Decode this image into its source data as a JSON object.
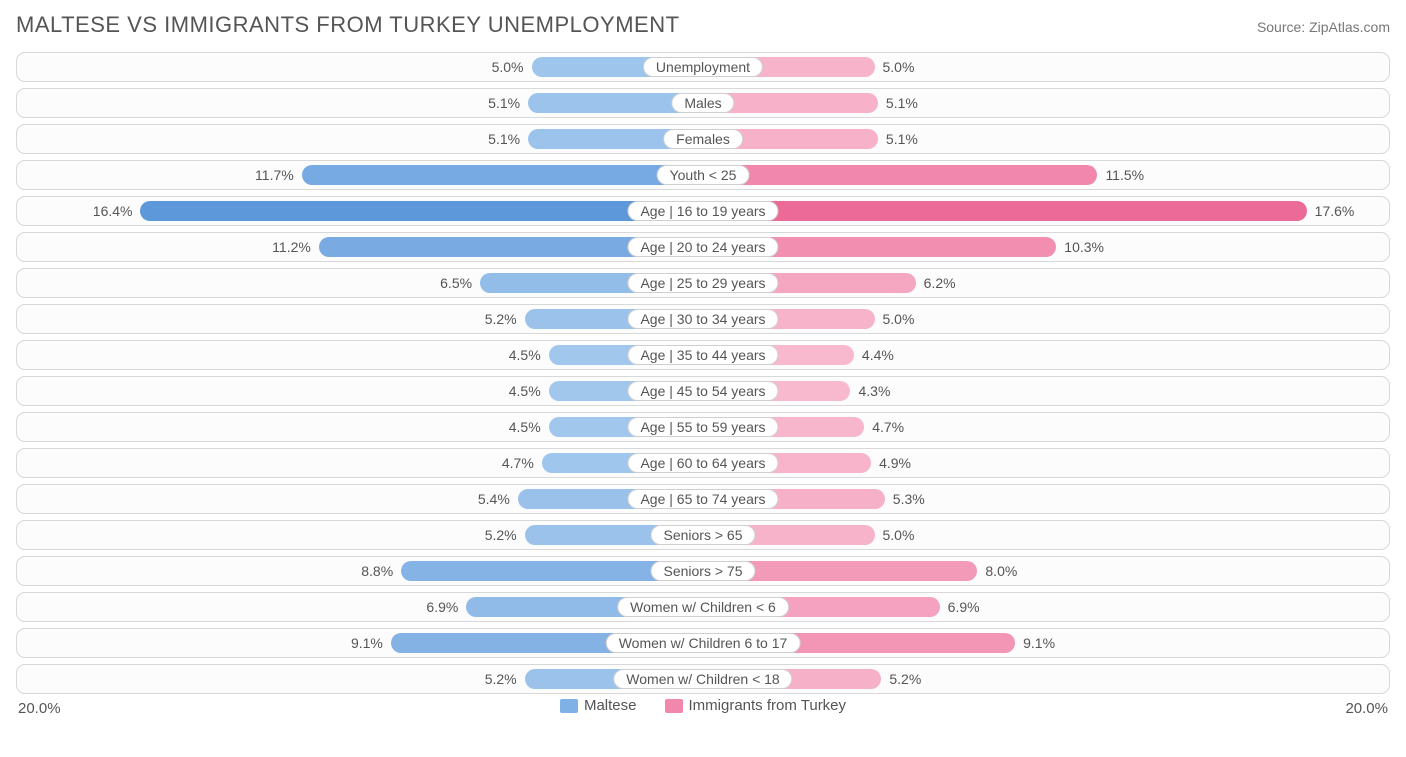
{
  "header": {
    "title": "MALTESE VS IMMIGRANTS FROM TURKEY UNEMPLOYMENT",
    "source": "Source: ZipAtlas.com"
  },
  "chart": {
    "type": "diverging-bar",
    "axis_max": 20.0,
    "axis_left_label": "20.0%",
    "axis_right_label": "20.0%",
    "left_series_name": "Maltese",
    "right_series_name": "Immigrants from Turkey",
    "row_border_color": "#d8d8d8",
    "row_background": "#fcfcfc",
    "label_pill_border": "#cfcfcf",
    "label_pill_background": "#ffffff",
    "label_font_size": 14,
    "value_font_size": 14,
    "title_font_size": 22,
    "text_color": "#555555",
    "left_color_base": "#7fb0e6",
    "right_color_base": "#f49ab8",
    "categories": [
      {
        "label": "Unemployment",
        "left_val": 5.0,
        "right_val": 5.0,
        "left_text": "5.0%",
        "right_text": "5.0%",
        "left_color": "#9ec5ec",
        "right_color": "#f7b3ca"
      },
      {
        "label": "Males",
        "left_val": 5.1,
        "right_val": 5.1,
        "left_text": "5.1%",
        "right_text": "5.1%",
        "left_color": "#9cc3eb",
        "right_color": "#f7b1c9"
      },
      {
        "label": "Females",
        "left_val": 5.1,
        "right_val": 5.1,
        "left_text": "5.1%",
        "right_text": "5.1%",
        "left_color": "#9cc3eb",
        "right_color": "#f7b1c9"
      },
      {
        "label": "Youth < 25",
        "left_val": 11.7,
        "right_val": 11.5,
        "left_text": "11.7%",
        "right_text": "11.5%",
        "left_color": "#77aae2",
        "right_color": "#f187ac"
      },
      {
        "label": "Age | 16 to 19 years",
        "left_val": 16.4,
        "right_val": 17.6,
        "left_text": "16.4%",
        "right_text": "17.6%",
        "left_color": "#5d98da",
        "right_color": "#ec6a98"
      },
      {
        "label": "Age | 20 to 24 years",
        "left_val": 11.2,
        "right_val": 10.3,
        "left_text": "11.2%",
        "right_text": "10.3%",
        "left_color": "#79abe2",
        "right_color": "#f28fb1"
      },
      {
        "label": "Age | 25 to 29 years",
        "left_val": 6.5,
        "right_val": 6.2,
        "left_text": "6.5%",
        "right_text": "6.2%",
        "left_color": "#93bde9",
        "right_color": "#f5a7c2"
      },
      {
        "label": "Age | 30 to 34 years",
        "left_val": 5.2,
        "right_val": 5.0,
        "left_text": "5.2%",
        "right_text": "5.0%",
        "left_color": "#9bc2eb",
        "right_color": "#f7b3ca"
      },
      {
        "label": "Age | 35 to 44 years",
        "left_val": 4.5,
        "right_val": 4.4,
        "left_text": "4.5%",
        "right_text": "4.4%",
        "left_color": "#a1c7ed",
        "right_color": "#f8b8cd"
      },
      {
        "label": "Age | 45 to 54 years",
        "left_val": 4.5,
        "right_val": 4.3,
        "left_text": "4.5%",
        "right_text": "4.3%",
        "left_color": "#a1c7ed",
        "right_color": "#f8b9ce"
      },
      {
        "label": "Age | 55 to 59 years",
        "left_val": 4.5,
        "right_val": 4.7,
        "left_text": "4.5%",
        "right_text": "4.7%",
        "left_color": "#a1c7ed",
        "right_color": "#f8b6cc"
      },
      {
        "label": "Age | 60 to 64 years",
        "left_val": 4.7,
        "right_val": 4.9,
        "left_text": "4.7%",
        "right_text": "4.9%",
        "left_color": "#9fc6ec",
        "right_color": "#f7b4cb"
      },
      {
        "label": "Age | 65 to 74 years",
        "left_val": 5.4,
        "right_val": 5.3,
        "left_text": "5.4%",
        "right_text": "5.3%",
        "left_color": "#9ac1ea",
        "right_color": "#f6b0c8"
      },
      {
        "label": "Seniors > 65",
        "left_val": 5.2,
        "right_val": 5.0,
        "left_text": "5.2%",
        "right_text": "5.0%",
        "left_color": "#9bc2eb",
        "right_color": "#f7b3ca"
      },
      {
        "label": "Seniors > 75",
        "left_val": 8.8,
        "right_val": 8.0,
        "left_text": "8.8%",
        "right_text": "8.0%",
        "left_color": "#86b3e5",
        "right_color": "#f39ab8"
      },
      {
        "label": "Women w/ Children < 6",
        "left_val": 6.9,
        "right_val": 6.9,
        "left_text": "6.9%",
        "right_text": "6.9%",
        "left_color": "#90bbe8",
        "right_color": "#f4a2bf"
      },
      {
        "label": "Women w/ Children 6 to 17",
        "left_val": 9.1,
        "right_val": 9.1,
        "left_text": "9.1%",
        "right_text": "9.1%",
        "left_color": "#84b2e5",
        "right_color": "#f395b5"
      },
      {
        "label": "Women w/ Children < 18",
        "left_val": 5.2,
        "right_val": 5.2,
        "left_text": "5.2%",
        "right_text": "5.2%",
        "left_color": "#9bc2eb",
        "right_color": "#f6b1c9"
      }
    ],
    "legend": {
      "left_swatch": "#7fb0e6",
      "right_swatch": "#f187ac"
    }
  }
}
